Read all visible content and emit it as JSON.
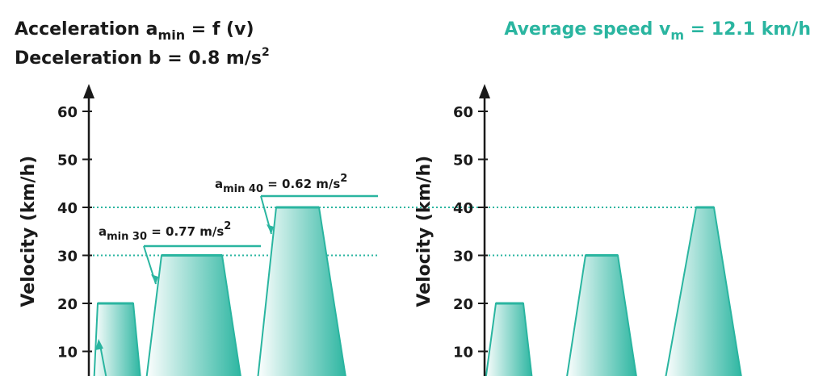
{
  "header": {
    "accel_prefix": "Acceleration a",
    "accel_sub": "min",
    "accel_suffix": " = f (v)",
    "decel_prefix": "Deceleration b = 0.8 m/s",
    "decel_sup": "2",
    "avg_prefix": "Average speed v",
    "avg_sub": "m",
    "avg_suffix": " = 12.1 km/h"
  },
  "colors": {
    "accent": "#2ab5a0",
    "text": "#1a1a1a",
    "fill_light": "#ffffff"
  },
  "chart_data": [
    {
      "type": "area",
      "ylabel": "Velocity (km/h)",
      "yticks": [
        "10",
        "20",
        "30",
        "40",
        "50",
        "60"
      ],
      "ylim": [
        0,
        65
      ],
      "reference_lines": [
        30,
        40
      ],
      "peaks": [
        20,
        30,
        40
      ],
      "annotations": [
        {
          "prefix": "a",
          "sub": "min 30",
          "suffix": " = 0.77 m/s",
          "sup": "2",
          "target_speed": 30
        },
        {
          "prefix": "a",
          "sub": "min 40",
          "suffix": " = 0.62 m/s",
          "sup": "2",
          "target_speed": 40
        }
      ]
    },
    {
      "type": "area",
      "ylabel": "Velocity (km/h)",
      "yticks": [
        "10",
        "20",
        "30",
        "40",
        "50",
        "60"
      ],
      "ylim": [
        0,
        65
      ],
      "reference_lines": [
        30,
        40
      ],
      "peaks": [
        20,
        30,
        40
      ]
    }
  ]
}
